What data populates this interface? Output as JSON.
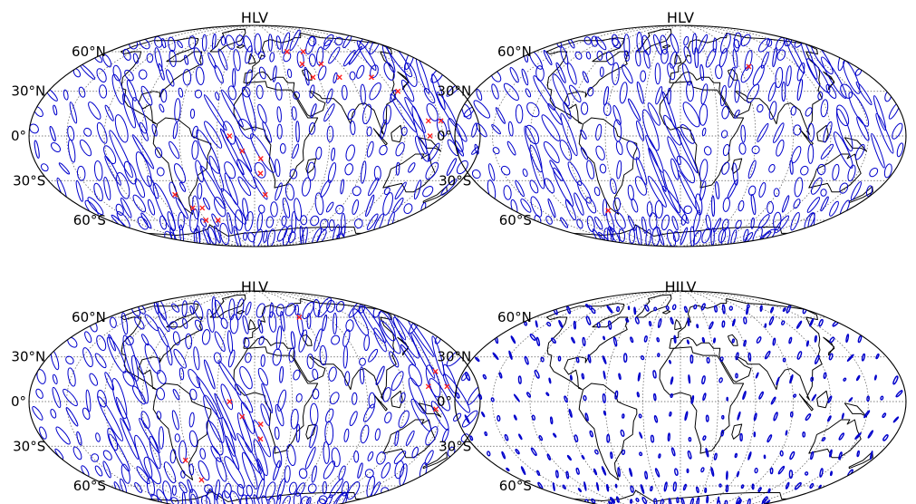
{
  "panels": [
    {
      "title": "HLV",
      "density": 1.0,
      "markers": [
        [
          -75,
          -40
        ],
        [
          -65,
          -50
        ],
        [
          -55,
          -50
        ],
        [
          -60,
          -60
        ],
        [
          -45,
          -60
        ],
        [
          -20,
          0
        ],
        [
          -10,
          -10
        ],
        [
          5,
          -15
        ],
        [
          5,
          -25
        ],
        [
          10,
          -40
        ],
        [
          40,
          60
        ],
        [
          50,
          50
        ],
        [
          60,
          60
        ],
        [
          70,
          50
        ],
        [
          55,
          40
        ],
        [
          80,
          40
        ],
        [
          110,
          40
        ],
        [
          125,
          30
        ],
        [
          140,
          10
        ],
        [
          150,
          10
        ],
        [
          140,
          0
        ]
      ]
    },
    {
      "title": "HLV",
      "density": 0.95,
      "markers": [
        [
          70,
          48
        ],
        [
          -78,
          -52
        ]
      ]
    },
    {
      "title": "HLV",
      "density": 1.0,
      "markers": [
        [
          -65,
          -40
        ],
        [
          -60,
          -55
        ],
        [
          -20,
          0
        ],
        [
          -10,
          -10
        ],
        [
          5,
          -15
        ],
        [
          5,
          -25
        ],
        [
          55,
          60
        ],
        [
          150,
          20
        ],
        [
          155,
          10
        ],
        [
          140,
          10
        ],
        [
          145,
          -5
        ]
      ]
    },
    {
      "title": "HILV",
      "density": 0.55,
      "markers": []
    }
  ],
  "lat_labels": [
    "60°N",
    "30°N",
    "0°",
    "30°S",
    "60°S"
  ],
  "colors": {
    "ellipse": "#0000cc",
    "marker": "#ff2020",
    "coast": "#000000",
    "grid": "#555555"
  }
}
